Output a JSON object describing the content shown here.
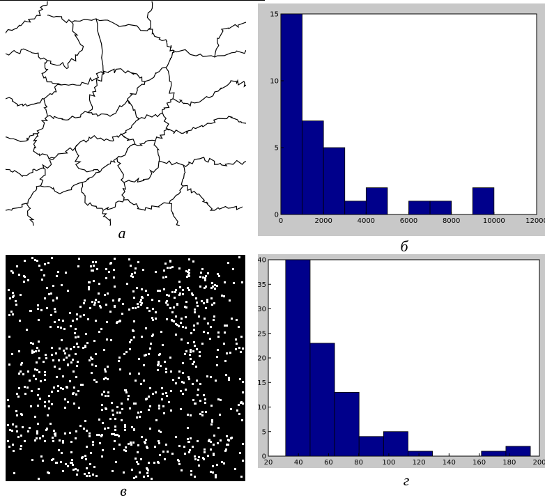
{
  "captions": {
    "a": "а",
    "b": "б",
    "c": "в",
    "d": "г"
  },
  "colors": {
    "bar_fill": "#00008b",
    "frame_bg": "#c8c8c8",
    "axes_bg": "#ffffff",
    "image_bg": "#000000",
    "dot": "#ffffff"
  },
  "images": {
    "boundaries": "grain-boundary contour map (black lines on white)",
    "dots": "binary image of white points on black background"
  },
  "chart_data": [
    {
      "type": "bar",
      "panel": "б",
      "title": "",
      "xlabel": "",
      "ylabel": "",
      "bin_edges": [
        0,
        1000,
        2000,
        3000,
        4000,
        5000,
        6000,
        7000,
        8000,
        9000,
        10000
      ],
      "values": [
        15,
        7,
        5,
        1,
        2,
        0,
        1,
        1,
        0,
        2
      ],
      "xlim": [
        0,
        12000
      ],
      "ylim": [
        0,
        15
      ],
      "xticks": [
        0,
        2000,
        4000,
        6000,
        8000,
        10000,
        12000
      ],
      "yticks": [
        0,
        5,
        10,
        15
      ],
      "xtick_labels": [
        "0",
        "2000",
        "4000",
        "6000",
        "8000",
        "10000",
        "12000"
      ],
      "ytick_labels": [
        "0",
        "5",
        "10",
        "15"
      ],
      "grid": false,
      "legend": "none"
    },
    {
      "type": "bar",
      "panel": "г",
      "title": "",
      "xlabel": "",
      "ylabel": "",
      "bin_edges": [
        31.5,
        47.75,
        64,
        80.25,
        96.5,
        112.75,
        129,
        145.25,
        161.5,
        177.75,
        194
      ],
      "values": [
        40,
        23,
        13,
        4,
        5,
        1,
        0,
        0,
        1,
        2
      ],
      "xlim": [
        20,
        200
      ],
      "ylim": [
        0,
        40
      ],
      "xticks": [
        20,
        40,
        60,
        80,
        100,
        120,
        140,
        160,
        180,
        200
      ],
      "yticks": [
        0,
        5,
        10,
        15,
        20,
        25,
        30,
        35,
        40
      ],
      "xtick_labels": [
        "20",
        "40",
        "60",
        "80",
        "100",
        "120",
        "140",
        "160",
        "180",
        "200"
      ],
      "ytick_labels": [
        "0",
        "5",
        "10",
        "15",
        "20",
        "25",
        "30",
        "35",
        "40"
      ],
      "grid": false,
      "legend": "none"
    }
  ]
}
